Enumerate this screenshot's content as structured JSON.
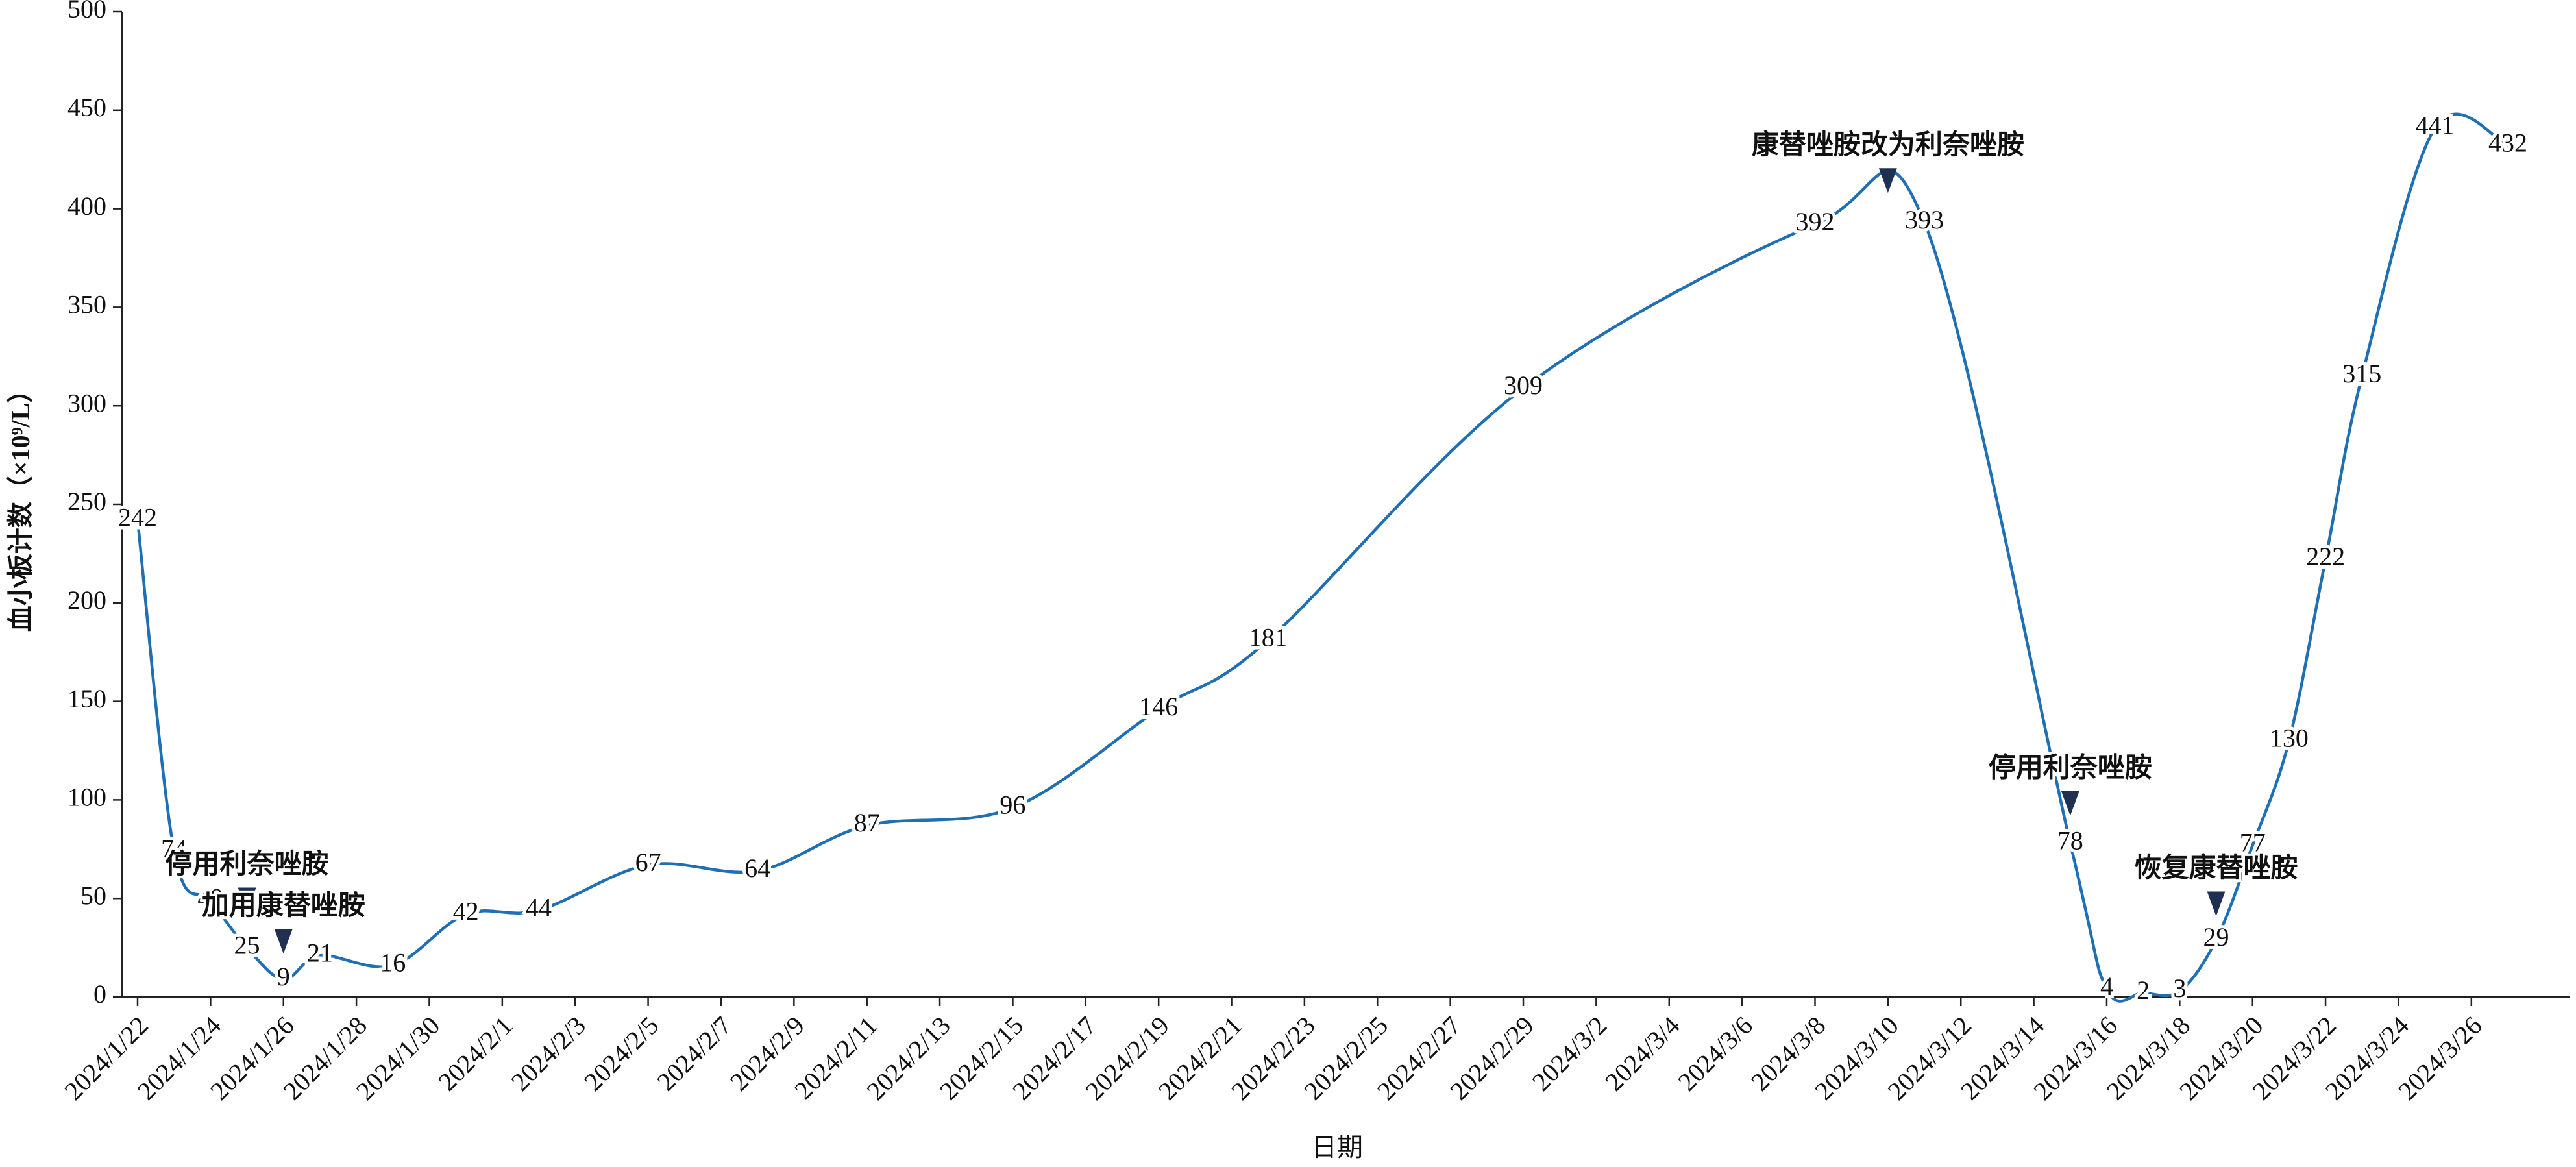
{
  "chart_data": {
    "type": "line",
    "xlabel": "日期",
    "ylabel": "血小板计数（×10⁹/L）",
    "x": [
      "2024/1/22",
      "2024/1/23",
      "2024/1/24",
      "2024/1/25",
      "2024/1/26",
      "2024/1/27",
      "2024/1/29",
      "2024/1/31",
      "2024/2/2",
      "2024/2/5",
      "2024/2/8",
      "2024/2/11",
      "2024/2/15",
      "2024/2/19",
      "2024/2/22",
      "2024/2/29",
      "2024/3/8",
      "2024/3/11",
      "2024/3/15",
      "2024/3/16",
      "2024/3/17",
      "2024/3/18",
      "2024/3/19",
      "2024/3/20",
      "2024/3/21",
      "2024/3/22",
      "2024/3/23",
      "2024/3/25",
      "2024/3/27"
    ],
    "series": [
      {
        "color": "#1f6fb5",
        "values": [
          242,
          74,
          49,
          25,
          9,
          21,
          16,
          42,
          44,
          67,
          64,
          87,
          96,
          146,
          181,
          309,
          392,
          393,
          78,
          4,
          2,
          3,
          29,
          77,
          130,
          222,
          315,
          441,
          432
        ]
      }
    ],
    "xlim": [
      "2024/1/22",
      "2024/3/27"
    ],
    "xticks": [
      "2024/1/22",
      "2024/1/24",
      "2024/1/26",
      "2024/1/28",
      "2024/1/30",
      "2024/2/1",
      "2024/2/3",
      "2024/2/5",
      "2024/2/7",
      "2024/2/9",
      "2024/2/11",
      "2024/2/13",
      "2024/2/15",
      "2024/2/17",
      "2024/2/19",
      "2024/2/21",
      "2024/2/23",
      "2024/2/25",
      "2024/2/27",
      "2024/2/29",
      "2024/3/2",
      "2024/3/4",
      "2024/3/6",
      "2024/3/8",
      "2024/3/10",
      "2024/3/12",
      "2024/3/14",
      "2024/3/16",
      "2024/3/18",
      "2024/3/20",
      "2024/3/22",
      "2024/3/24",
      "2024/3/26"
    ],
    "ylim": [
      0,
      500
    ],
    "yticks": [
      0,
      50,
      100,
      150,
      200,
      250,
      300,
      350,
      400,
      450,
      500
    ],
    "annotations": [
      {
        "text": "停用利奈唑胺",
        "x": "2024/1/25",
        "y": 43,
        "color": "#111111"
      },
      {
        "text": "加用康替唑胺",
        "x": "2024/1/26",
        "y": 22,
        "color": "#1f3864"
      },
      {
        "text": "康替唑胺改为利奈唑胺",
        "x": "2024/3/10",
        "y": 408,
        "color": "#111111"
      },
      {
        "text": "停用利奈唑胺",
        "x": "2024/3/15",
        "y": 92,
        "color": "#111111"
      },
      {
        "text": "恢复康替唑胺",
        "x": "2024/3/19",
        "y": 41,
        "color": "#1f3864"
      }
    ]
  }
}
